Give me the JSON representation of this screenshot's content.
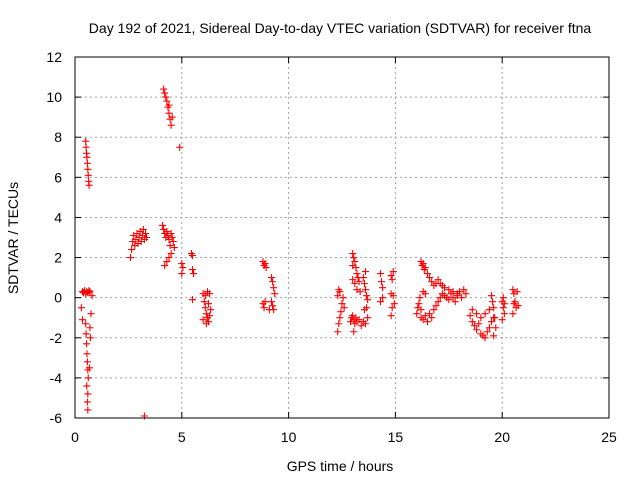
{
  "chart_data": {
    "type": "scatter",
    "title": "Day 192 of 2021, Sidereal Day-to-day VTEC variation (SDTVAR) for receiver ftna",
    "xlabel": "GPS time / hours",
    "ylabel": "SDTVAR / TECUs",
    "xlim": [
      0,
      25
    ],
    "ylim": [
      -6,
      12
    ],
    "xticks": [
      0,
      5,
      10,
      15,
      20,
      25
    ],
    "yticks": [
      -6,
      -4,
      -2,
      0,
      2,
      4,
      6,
      8,
      10,
      12
    ],
    "xtick_labels": [
      "0",
      "5",
      "10",
      "15",
      "20",
      "25"
    ],
    "ytick_labels": [
      "-6",
      "-4",
      "-2",
      "0",
      "2",
      "4",
      "6",
      "8",
      "10",
      "12"
    ],
    "grid": true,
    "marker": "+",
    "color": "#ff0000",
    "series": [
      {
        "name": "ftna",
        "points": [
          [
            0.35,
            0.3
          ],
          [
            0.4,
            0.25
          ],
          [
            0.45,
            0.35
          ],
          [
            0.5,
            0.2
          ],
          [
            0.55,
            0.3
          ],
          [
            0.6,
            0.25
          ],
          [
            0.65,
            0.35
          ],
          [
            0.7,
            0.3
          ],
          [
            0.3,
            -0.5
          ],
          [
            0.35,
            -1.1
          ],
          [
            0.75,
            -0.8
          ],
          [
            0.8,
            0.1
          ],
          [
            0.5,
            7.8
          ],
          [
            0.52,
            7.5
          ],
          [
            0.54,
            7.2
          ],
          [
            0.56,
            7.0
          ],
          [
            0.58,
            6.7
          ],
          [
            0.6,
            6.4
          ],
          [
            0.62,
            6.1
          ],
          [
            0.64,
            5.8
          ],
          [
            0.66,
            5.6
          ],
          [
            0.5,
            -1.3
          ],
          [
            0.52,
            -1.8
          ],
          [
            0.54,
            -2.3
          ],
          [
            0.56,
            -2.8
          ],
          [
            0.58,
            -3.2
          ],
          [
            0.6,
            -3.6
          ],
          [
            0.62,
            -4.0
          ],
          [
            0.55,
            -4.4
          ],
          [
            0.6,
            -4.8
          ],
          [
            0.58,
            -5.2
          ],
          [
            0.6,
            -5.6
          ],
          [
            0.7,
            -1.5
          ],
          [
            0.72,
            -2.0
          ],
          [
            0.68,
            -3.5
          ],
          [
            2.6,
            2.0
          ],
          [
            2.65,
            2.4
          ],
          [
            2.7,
            2.8
          ],
          [
            2.75,
            3.1
          ],
          [
            2.8,
            2.6
          ],
          [
            2.85,
            2.9
          ],
          [
            2.9,
            3.2
          ],
          [
            2.95,
            2.7
          ],
          [
            3.0,
            3.0
          ],
          [
            3.05,
            3.3
          ],
          [
            3.1,
            2.8
          ],
          [
            3.15,
            3.1
          ],
          [
            3.2,
            3.4
          ],
          [
            3.25,
            2.9
          ],
          [
            3.3,
            3.2
          ],
          [
            3.35,
            3.0
          ],
          [
            4.15,
            10.4
          ],
          [
            4.2,
            10.2
          ],
          [
            4.25,
            10.0
          ],
          [
            4.3,
            9.8
          ],
          [
            4.35,
            9.5
          ],
          [
            4.4,
            9.2
          ],
          [
            4.45,
            8.9
          ],
          [
            4.5,
            8.6
          ],
          [
            4.55,
            9.0
          ],
          [
            4.4,
            9.6
          ],
          [
            4.9,
            7.5
          ],
          [
            4.1,
            3.6
          ],
          [
            4.15,
            3.4
          ],
          [
            4.2,
            3.2
          ],
          [
            4.25,
            3.0
          ],
          [
            4.3,
            3.3
          ],
          [
            4.35,
            3.1
          ],
          [
            4.4,
            2.9
          ],
          [
            4.45,
            2.6
          ],
          [
            4.5,
            3.2
          ],
          [
            4.55,
            3.0
          ],
          [
            4.6,
            2.8
          ],
          [
            4.65,
            2.5
          ],
          [
            4.5,
            2.2
          ],
          [
            4.4,
            2.0
          ],
          [
            4.3,
            1.8
          ],
          [
            4.2,
            1.6
          ],
          [
            5.0,
            1.7
          ],
          [
            5.05,
            1.5
          ],
          [
            5.0,
            1.2
          ],
          [
            5.45,
            2.2
          ],
          [
            5.5,
            2.1
          ],
          [
            5.5,
            1.4
          ],
          [
            5.55,
            1.2
          ],
          [
            5.5,
            -0.1
          ],
          [
            3.25,
            -5.9
          ],
          [
            6.0,
            0.2
          ],
          [
            6.05,
            -0.2
          ],
          [
            6.1,
            -0.5
          ],
          [
            6.15,
            -0.8
          ],
          [
            6.2,
            -1.0
          ],
          [
            6.25,
            -1.2
          ],
          [
            6.3,
            -0.9
          ],
          [
            6.35,
            -0.6
          ],
          [
            6.1,
            0.1
          ],
          [
            6.2,
            0.3
          ],
          [
            6.3,
            0.2
          ],
          [
            6.0,
            -1.1
          ],
          [
            6.25,
            -0.3
          ],
          [
            6.15,
            -1.3
          ],
          [
            8.8,
            1.8
          ],
          [
            8.85,
            1.6
          ],
          [
            8.9,
            1.7
          ],
          [
            8.95,
            1.5
          ],
          [
            8.8,
            -0.3
          ],
          [
            8.85,
            -0.5
          ],
          [
            8.9,
            -0.2
          ],
          [
            9.1,
            -0.6
          ],
          [
            9.2,
            1.0
          ],
          [
            9.25,
            0.8
          ],
          [
            9.3,
            0.5
          ],
          [
            9.35,
            0.2
          ],
          [
            9.2,
            -0.2
          ],
          [
            9.25,
            -0.4
          ],
          [
            9.3,
            -0.6
          ],
          [
            12.3,
            -1.7
          ],
          [
            12.35,
            -1.3
          ],
          [
            12.4,
            -1.0
          ],
          [
            12.45,
            -0.7
          ],
          [
            12.3,
            0.1
          ],
          [
            12.35,
            0.4
          ],
          [
            12.4,
            0.3
          ],
          [
            12.5,
            -0.3
          ],
          [
            12.55,
            0.0
          ],
          [
            12.6,
            -0.5
          ],
          [
            12.9,
            -1.2
          ],
          [
            12.95,
            -1.0
          ],
          [
            13.0,
            -0.9
          ],
          [
            13.05,
            -1.1
          ],
          [
            13.1,
            -1.3
          ],
          [
            13.15,
            -1.0
          ],
          [
            13.2,
            -1.2
          ],
          [
            13.3,
            -1.1
          ],
          [
            13.4,
            -1.4
          ],
          [
            13.5,
            -1.2
          ],
          [
            13.6,
            -1.3
          ],
          [
            13.05,
            -1.7
          ],
          [
            13.0,
            2.2
          ],
          [
            13.05,
            2.0
          ],
          [
            13.1,
            1.8
          ],
          [
            13.15,
            1.5
          ],
          [
            13.2,
            1.2
          ],
          [
            13.25,
            1.0
          ],
          [
            13.0,
            1.6
          ],
          [
            13.1,
            0.7
          ],
          [
            13.2,
            0.4
          ],
          [
            13.3,
            0.8
          ],
          [
            13.35,
            0.3
          ],
          [
            13.0,
            0.9
          ],
          [
            13.5,
            1.0
          ],
          [
            13.55,
            0.7
          ],
          [
            13.6,
            0.4
          ],
          [
            13.65,
            0.1
          ],
          [
            13.7,
            -0.1
          ],
          [
            13.6,
            1.3
          ],
          [
            13.65,
            -0.5
          ],
          [
            13.7,
            -1.0
          ],
          [
            13.55,
            -0.6
          ],
          [
            14.3,
            1.2
          ],
          [
            14.35,
            0.8
          ],
          [
            14.4,
            0.5
          ],
          [
            14.3,
            -0.2
          ],
          [
            14.4,
            0.0
          ],
          [
            14.8,
            1.1
          ],
          [
            14.85,
            0.9
          ],
          [
            14.9,
            1.3
          ],
          [
            14.8,
            0.2
          ],
          [
            14.85,
            -0.5
          ],
          [
            14.9,
            0.1
          ],
          [
            14.95,
            -0.3
          ],
          [
            14.8,
            -0.9
          ],
          [
            16.2,
            1.8
          ],
          [
            16.25,
            1.6
          ],
          [
            16.3,
            1.7
          ],
          [
            16.35,
            1.4
          ],
          [
            16.4,
            1.5
          ],
          [
            16.5,
            1.2
          ],
          [
            16.6,
            1.0
          ],
          [
            16.7,
            0.8
          ],
          [
            16.8,
            0.6
          ],
          [
            16.9,
            0.7
          ],
          [
            17.0,
            0.9
          ],
          [
            17.1,
            0.7
          ],
          [
            17.2,
            0.6
          ],
          [
            17.3,
            0.5
          ],
          [
            17.5,
            0.4
          ],
          [
            17.7,
            0.3
          ],
          [
            17.9,
            0.2
          ],
          [
            16.2,
            -1.0
          ],
          [
            16.3,
            -1.1
          ],
          [
            16.4,
            -0.9
          ],
          [
            16.5,
            -1.2
          ],
          [
            16.6,
            -0.8
          ],
          [
            16.7,
            -1.0
          ],
          [
            16.8,
            -0.6
          ],
          [
            16.9,
            -0.4
          ],
          [
            17.0,
            -0.2
          ],
          [
            17.1,
            0.0
          ],
          [
            17.2,
            0.2
          ],
          [
            17.3,
            0.1
          ],
          [
            17.4,
            0.0
          ],
          [
            17.5,
            -0.1
          ],
          [
            17.6,
            0.2
          ],
          [
            17.7,
            0.0
          ],
          [
            17.8,
            -0.2
          ],
          [
            17.9,
            0.1
          ],
          [
            18.0,
            0.3
          ],
          [
            18.1,
            0.0
          ],
          [
            18.2,
            0.4
          ],
          [
            18.3,
            0.2
          ],
          [
            16.0,
            -0.8
          ],
          [
            16.05,
            -0.5
          ],
          [
            16.1,
            -0.3
          ],
          [
            16.15,
            0.0
          ],
          [
            16.2,
            -0.6
          ],
          [
            16.3,
            0.3
          ],
          [
            16.4,
            0.2
          ],
          [
            18.5,
            -0.9
          ],
          [
            18.6,
            -1.2
          ],
          [
            18.7,
            -1.4
          ],
          [
            18.8,
            -1.6
          ],
          [
            18.9,
            -1.3
          ],
          [
            19.0,
            -1.8
          ],
          [
            19.1,
            -1.9
          ],
          [
            19.2,
            -2.0
          ],
          [
            19.3,
            -1.7
          ],
          [
            19.4,
            -1.5
          ],
          [
            19.5,
            -1.2
          ],
          [
            19.6,
            -1.0
          ],
          [
            18.6,
            -0.6
          ],
          [
            18.8,
            -0.8
          ],
          [
            19.0,
            -1.0
          ],
          [
            19.2,
            -0.8
          ],
          [
            19.4,
            -0.6
          ],
          [
            19.5,
            0.1
          ],
          [
            19.55,
            -0.2
          ],
          [
            19.6,
            -0.5
          ],
          [
            19.65,
            -1.0
          ],
          [
            19.7,
            -1.5
          ],
          [
            19.6,
            -1.9
          ],
          [
            20.0,
            -0.2
          ],
          [
            20.05,
            -0.5
          ],
          [
            20.1,
            -0.8
          ],
          [
            20.0,
            -1.1
          ],
          [
            20.05,
            0.0
          ],
          [
            20.1,
            -0.3
          ],
          [
            20.5,
            0.4
          ],
          [
            20.55,
            0.2
          ],
          [
            20.6,
            -0.2
          ],
          [
            20.65,
            -0.5
          ],
          [
            20.5,
            -0.8
          ],
          [
            20.55,
            -0.3
          ],
          [
            20.7,
            0.3
          ],
          [
            20.75,
            -0.4
          ]
        ]
      }
    ]
  }
}
